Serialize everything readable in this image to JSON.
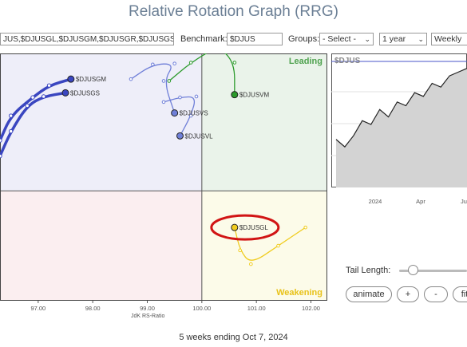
{
  "page": {
    "title": "Relative Rotation Graph (RRG)",
    "footer": "5 weeks ending Oct 7, 2024"
  },
  "toolbar": {
    "symbols_value": "JUS,$DJUSGL,$DJUSGM,$DJUSGR,$DJUSGS",
    "benchmark_label": "Benchmark:",
    "benchmark_value": "$DJUS",
    "groups_label": "Groups:",
    "groups_value": "- Select -",
    "period_value": "1 year",
    "frequency_value": "Weekly"
  },
  "controls": {
    "tail_length_label": "Tail Length:",
    "tail_length_fraction": 0.1,
    "animate_label": "animate",
    "plus_label": "+",
    "minus_label": "-",
    "fit_label": "fit"
  },
  "colors": {
    "leading_bg": "#eaf3ea",
    "weakening_bg": "#fcfbe9",
    "lagging_bg": "#fbeef0",
    "improving_bg": "#eeeef9",
    "leading_text": "#4fa24f",
    "weakening_text": "#e8c21a",
    "highlight_ellipse": "#d11414"
  },
  "chart_data": [
    {
      "type": "scatter",
      "subtype": "relative-rotation-graph",
      "xlabel": "JdK RS-Ratio",
      "ylabel": "",
      "xlim": [
        96.3,
        102.3
      ],
      "ylim": [
        98.8,
        101.5
      ],
      "center": [
        100,
        100
      ],
      "x_ticks": [
        "97.00",
        "98.00",
        "99.00",
        "100.00",
        "101.00",
        "102.00"
      ],
      "x_tick_values": [
        97,
        98,
        99,
        100,
        101,
        102
      ],
      "quadrants": [
        {
          "name": "Leading",
          "position": "top-right",
          "label": "Leading"
        },
        {
          "name": "Weakening",
          "position": "bottom-right",
          "label": "Weakening"
        },
        {
          "name": "Lagging",
          "position": "bottom-left",
          "label": ""
        },
        {
          "name": "Improving",
          "position": "top-left",
          "label": ""
        }
      ],
      "series": [
        {
          "name": "$DJUSGM",
          "color": "#3a46c0",
          "weight": "bold",
          "points": [
            [
              96.3,
              100.55
            ],
            [
              96.5,
              100.82
            ],
            [
              96.9,
              101.02
            ],
            [
              97.2,
              101.15
            ],
            [
              97.6,
              101.22
            ]
          ]
        },
        {
          "name": "$DJUSGS",
          "color": "#3a46c0",
          "weight": "bold",
          "points": [
            [
              96.3,
              100.38
            ],
            [
              96.5,
              100.65
            ],
            [
              96.8,
              100.93
            ],
            [
              97.1,
              101.03
            ],
            [
              97.5,
              101.07
            ]
          ]
        },
        {
          "name": "$DJUSVS",
          "color": "#6f7fd8",
          "weight": "thin",
          "points": [
            [
              98.7,
              101.22
            ],
            [
              99.1,
              101.38
            ],
            [
              99.5,
              101.39
            ],
            [
              99.3,
              101.2
            ],
            [
              99.5,
              100.85
            ]
          ]
        },
        {
          "name": "$DJUSVL",
          "color": "#6f7fd8",
          "weight": "thin",
          "points": [
            [
              99.3,
              100.97
            ],
            [
              99.6,
              101.02
            ],
            [
              99.9,
              101.03
            ],
            [
              99.8,
              100.82
            ],
            [
              99.6,
              100.6
            ]
          ]
        },
        {
          "name": "$DJUSVM",
          "color": "#2b9a2b",
          "weight": "thin",
          "points": [
            [
              99.4,
              101.2
            ],
            [
              99.8,
              101.4
            ],
            [
              100.3,
              101.58
            ],
            [
              100.6,
              101.4
            ],
            [
              100.6,
              101.05
            ]
          ]
        },
        {
          "name": "$DJUSGL",
          "color": "#f0cc1e",
          "weight": "thin",
          "points": [
            [
              101.9,
              99.6
            ],
            [
              101.4,
              99.4
            ],
            [
              100.9,
              99.2
            ],
            [
              100.7,
              99.35
            ],
            [
              100.6,
              99.6
            ]
          ]
        }
      ]
    },
    {
      "type": "area",
      "title": "$DJUS",
      "x_ticks": [
        "2024",
        "Apr",
        "Ju"
      ],
      "values": [
        60,
        56,
        62,
        70,
        68,
        76,
        72,
        80,
        78,
        85,
        83,
        90,
        88,
        94,
        96,
        98
      ]
    }
  ]
}
